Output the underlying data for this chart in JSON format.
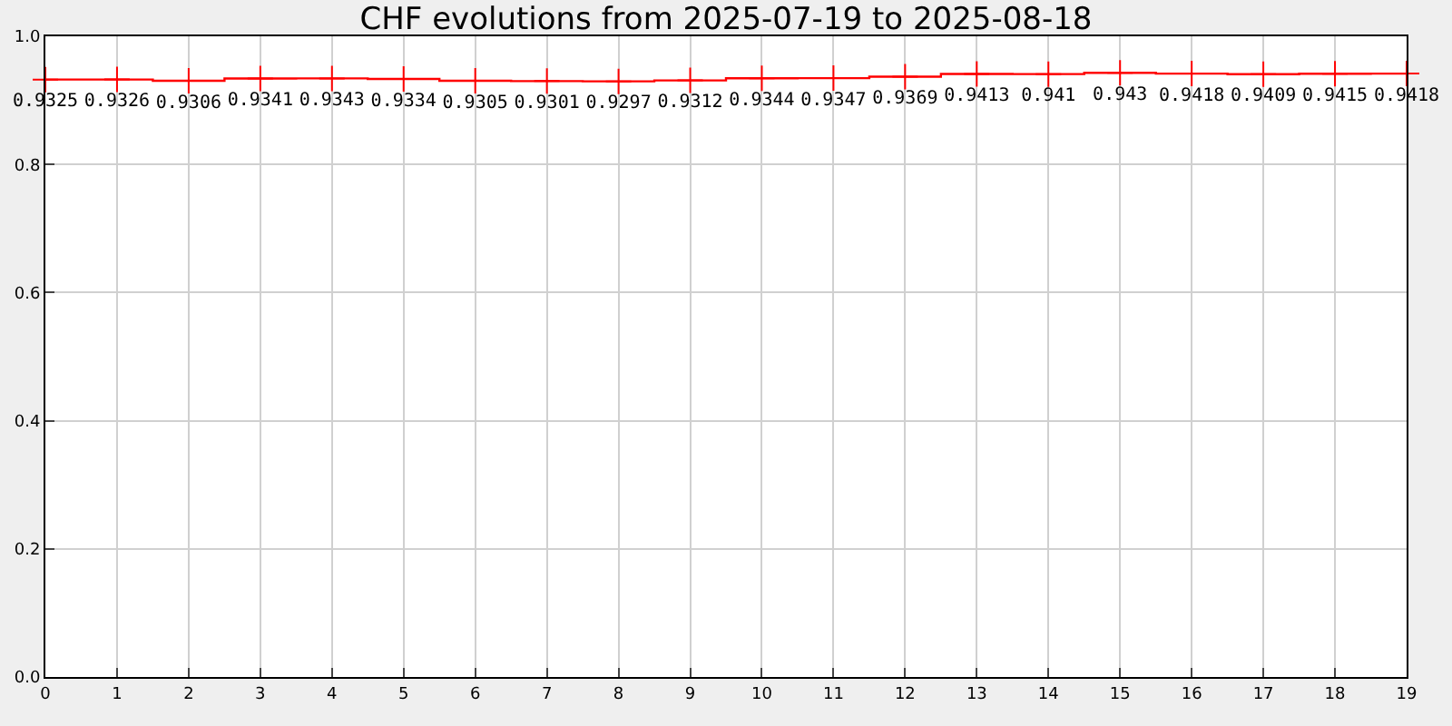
{
  "chart_data": {
    "type": "step",
    "title": "CHF evolutions from 2025-07-19 to 2025-08-18",
    "x": [
      0,
      1,
      2,
      3,
      4,
      5,
      6,
      7,
      8,
      9,
      10,
      11,
      12,
      13,
      14,
      15,
      16,
      17,
      18,
      19
    ],
    "series": [
      {
        "color": "#ff0000",
        "values": [
          0.9325,
          0.9326,
          0.9306,
          0.9341,
          0.9343,
          0.9334,
          0.9305,
          0.9301,
          0.9297,
          0.9312,
          0.9344,
          0.9347,
          0.9369,
          0.9413,
          0.941,
          0.943,
          0.9418,
          0.9409,
          0.9415,
          0.9418
        ]
      }
    ],
    "xlim": [
      0,
      19
    ],
    "xticks": [
      0,
      1,
      2,
      3,
      4,
      5,
      6,
      7,
      8,
      9,
      10,
      11,
      12,
      13,
      14,
      15,
      16,
      17,
      18,
      19
    ],
    "ylim": [
      0,
      1
    ],
    "yticks": [
      {
        "value": 0,
        "label": "0.0"
      },
      {
        "value": 0.2,
        "label": "0.2"
      },
      {
        "value": 0.4,
        "label": "0.4"
      },
      {
        "value": 0.6,
        "label": "0.6"
      },
      {
        "value": 0.8,
        "label": "0.8"
      },
      {
        "value": 1,
        "label": "1.0"
      }
    ],
    "grid": true,
    "marker": "cross",
    "data_labels": true
  }
}
